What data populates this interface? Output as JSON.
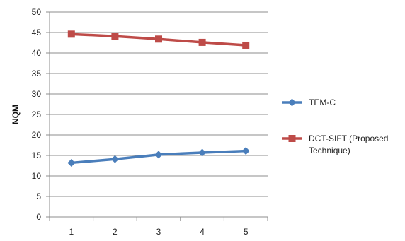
{
  "chart_data": {
    "type": "line",
    "title": "",
    "xlabel": "",
    "ylabel": "NQM",
    "x": [
      "1",
      "2",
      "3",
      "4",
      "5"
    ],
    "ylim": [
      0,
      50
    ],
    "yticks": [
      0,
      5,
      10,
      15,
      20,
      25,
      30,
      35,
      40,
      45,
      50
    ],
    "grid": "horizontal",
    "legend_position": "right",
    "series": [
      {
        "name": "TEM-C",
        "values": [
          13.2,
          14.1,
          15.2,
          15.7,
          16.1
        ],
        "color": "#4a7ebb",
        "marker": "diamond"
      },
      {
        "name": "DCT-SIFT (Proposed Technique)",
        "name_lines": [
          "DCT-SIFT (Proposed",
          "Technique)"
        ],
        "values": [
          44.6,
          44.1,
          43.4,
          42.6,
          41.9
        ],
        "color": "#be4b48",
        "marker": "square"
      }
    ]
  }
}
